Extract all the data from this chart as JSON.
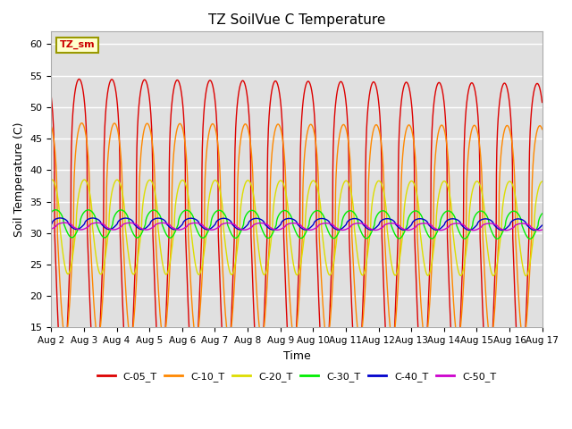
{
  "title": "TZ SoilVue C Temperature",
  "xlabel": "Time",
  "ylabel": "Soil Temperature (C)",
  "ylim": [
    15,
    62
  ],
  "background_color": "#e0e0e0",
  "series_names": [
    "C-05_T",
    "C-10_T",
    "C-20_T",
    "C-30_T",
    "C-40_T",
    "C-50_T"
  ],
  "series_colors": [
    "#dd0000",
    "#ff8800",
    "#dddd00",
    "#00ee00",
    "#0000cc",
    "#cc00cc"
  ],
  "C05_base": 30.5,
  "C05_amp": 24,
  "C05_power": 4,
  "C05_trend": -0.05,
  "C10_base": 30.5,
  "C10_amp": 17,
  "C10_power": 3,
  "C10_phase_lag": 0.08,
  "C10_trend": -0.03,
  "C20_base": 31.0,
  "C20_amp": 7.5,
  "C20_power": 2,
  "C20_phase_lag": 0.16,
  "C20_trend": -0.02,
  "C30_base": 31.5,
  "C30_amp": 2.2,
  "C30_power": 2,
  "C30_phase_lag": 0.28,
  "C30_trend": -0.015,
  "C40_base": 31.5,
  "C40_amp": 0.9,
  "C40_power": 2,
  "C40_phase_lag": 0.42,
  "C40_trend": -0.01,
  "C50_base": 31.1,
  "C50_amp": 0.55,
  "C50_power": 2,
  "C50_phase_lag": 0.55,
  "C50_trend": -0.008,
  "xtick_labels": [
    "Aug 2",
    "Aug 3",
    "Aug 4",
    "Aug 5",
    "Aug 6",
    "Aug 7",
    "Aug 8",
    "Aug 9",
    "Aug 10",
    "Aug 11",
    "Aug 12",
    "Aug 13",
    "Aug 14",
    "Aug 15",
    "Aug 16",
    "Aug 17"
  ],
  "ytick_values": [
    15,
    20,
    25,
    30,
    35,
    40,
    45,
    50,
    55,
    60
  ],
  "annotation_text": "TZ_sm",
  "legend_entries": [
    "C-05_T",
    "C-10_T",
    "C-20_T",
    "C-30_T",
    "C-40_T",
    "C-50_T"
  ]
}
